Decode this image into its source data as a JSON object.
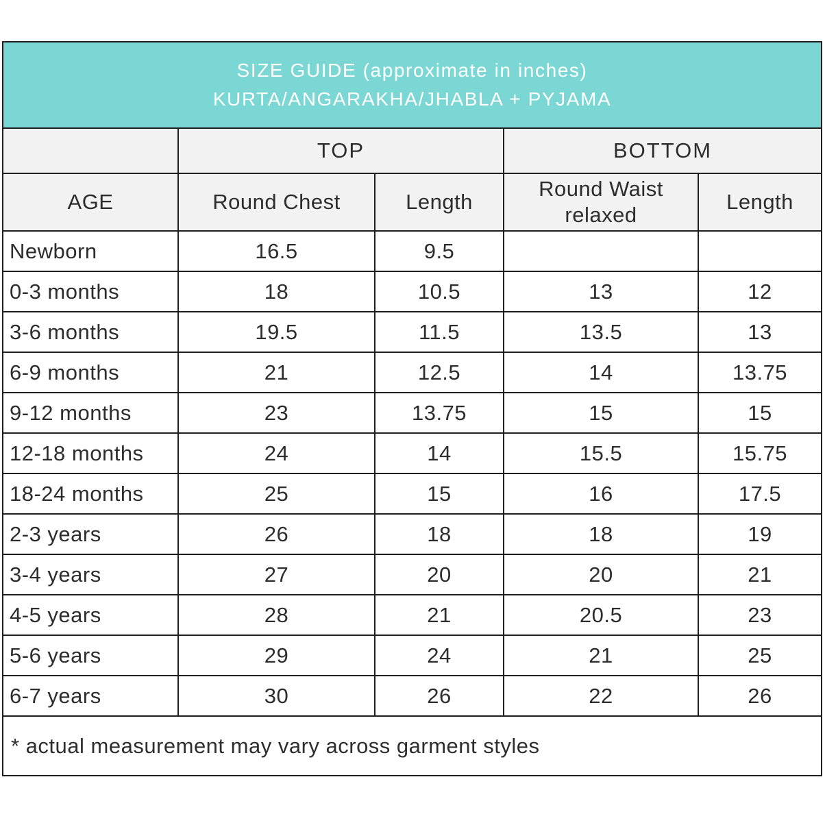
{
  "banner": {
    "line1": "SIZE GUIDE (approximate in inches)",
    "line2": "KURTA/ANGARAKHA/JHABLA + PYJAMA"
  },
  "colors": {
    "banner_bg": "#7bd7d4",
    "banner_text": "#ffffff",
    "header_bg": "#f2f2f2",
    "border": "#1f1f1f",
    "text": "#2d2d2d"
  },
  "table": {
    "group_top": "TOP",
    "group_bottom": "BOTTOM",
    "headers": {
      "age": "AGE",
      "round_chest": "Round Chest",
      "top_length": "Length",
      "round_waist": "Round Waist relaxed",
      "bottom_length": "Length"
    },
    "rows": [
      {
        "age": "Newborn",
        "round_chest": "16.5",
        "top_length": "9.5",
        "round_waist": "",
        "bottom_length": ""
      },
      {
        "age": "0-3 months",
        "round_chest": "18",
        "top_length": "10.5",
        "round_waist": "13",
        "bottom_length": "12"
      },
      {
        "age": "3-6 months",
        "round_chest": "19.5",
        "top_length": "11.5",
        "round_waist": "13.5",
        "bottom_length": "13"
      },
      {
        "age": "6-9 months",
        "round_chest": "21",
        "top_length": "12.5",
        "round_waist": "14",
        "bottom_length": "13.75"
      },
      {
        "age": "9-12 months",
        "round_chest": "23",
        "top_length": "13.75",
        "round_waist": "15",
        "bottom_length": "15"
      },
      {
        "age": "12-18 months",
        "round_chest": "24",
        "top_length": "14",
        "round_waist": "15.5",
        "bottom_length": "15.75"
      },
      {
        "age": "18-24 months",
        "round_chest": "25",
        "top_length": "15",
        "round_waist": "16",
        "bottom_length": "17.5"
      },
      {
        "age": "2-3 years",
        "round_chest": "26",
        "top_length": "18",
        "round_waist": "18",
        "bottom_length": "19"
      },
      {
        "age": "3-4 years",
        "round_chest": "27",
        "top_length": "20",
        "round_waist": "20",
        "bottom_length": "21"
      },
      {
        "age": "4-5 years",
        "round_chest": "28",
        "top_length": "21",
        "round_waist": "20.5",
        "bottom_length": "23"
      },
      {
        "age": "5-6 years",
        "round_chest": "29",
        "top_length": "24",
        "round_waist": "21",
        "bottom_length": "25"
      },
      {
        "age": "6-7 years",
        "round_chest": "30",
        "top_length": "26",
        "round_waist": "22",
        "bottom_length": "26"
      }
    ]
  },
  "footnote": "* actual measurement may vary across garment styles"
}
